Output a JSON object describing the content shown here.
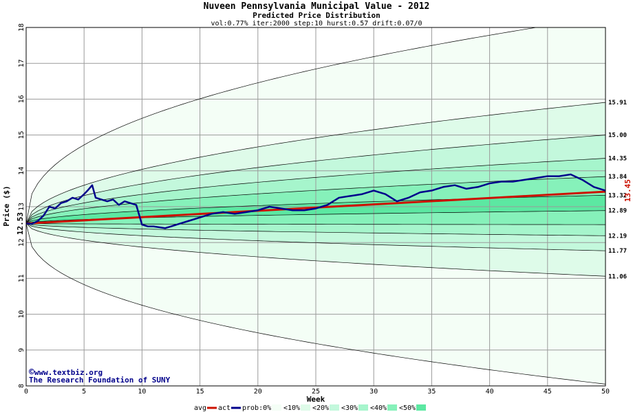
{
  "chart_data": {
    "type": "area",
    "title": "Nuveen Pennsylvania Municipal Value - 2012",
    "subtitle": "Predicted Price Distribution",
    "params": "vol:0.77% iter:2000 step:10 hurst:0.57 drift:0.07/0",
    "xlabel": "Week",
    "ylabel": "Price ($)",
    "xlim": [
      0,
      50
    ],
    "ylim": [
      8,
      18
    ],
    "x_ticks": [
      "0",
      "5",
      "10",
      "15",
      "20",
      "25",
      "30",
      "35",
      "40",
      "45",
      "50"
    ],
    "y_ticks": [
      "8",
      "9",
      "10",
      "11",
      "12",
      "13",
      "14",
      "15",
      "16",
      "17",
      "18"
    ],
    "grid": true,
    "start_price": 12.53,
    "start_price_label": "12.53",
    "end_actual": 13.45,
    "end_actual_label": "13.45",
    "right_labels": [
      "15.91",
      "15.00",
      "14.35",
      "13.84",
      "13.32",
      "12.89",
      "12.19",
      "11.77",
      "11.06"
    ],
    "bands": [
      {
        "name": "prob:0%",
        "upper": 18.3,
        "lower": 8.05,
        "color": "#f4fef6"
      },
      {
        "name": "<10%",
        "upper": 15.91,
        "lower": 11.06,
        "color": "#defbe9"
      },
      {
        "name": "<20%",
        "upper": 15.0,
        "lower": 11.77,
        "color": "#c3f8dc"
      },
      {
        "name": "<30%",
        "upper": 14.35,
        "lower": 12.19,
        "color": "#a6f5cc"
      },
      {
        "name": "<40%",
        "upper": 13.84,
        "lower": 12.5,
        "color": "#86f1ba"
      },
      {
        "name": "<50%",
        "upper": 13.32,
        "lower": 12.89,
        "color": "#5ce8a2"
      }
    ],
    "avg_line": {
      "name": "avg",
      "start": 12.53,
      "end": 13.42,
      "color": "#cc1100"
    },
    "act_series": {
      "name": "act",
      "color": "#00008b",
      "x": [
        0,
        0.5,
        1,
        1.5,
        2,
        2.5,
        3,
        3.5,
        4,
        4.5,
        5,
        5.3,
        5.7,
        6,
        6.5,
        7,
        7.5,
        8,
        8.5,
        9,
        9.5,
        10,
        10.5,
        11,
        12,
        13,
        14,
        15,
        16,
        17,
        18,
        19,
        20,
        21,
        22,
        23,
        24,
        25,
        26,
        27,
        28,
        29,
        30,
        31,
        32,
        33,
        34,
        35,
        36,
        37,
        38,
        39,
        40,
        41,
        42,
        43,
        44,
        45,
        46,
        47,
        48,
        48.5,
        49,
        49.5,
        50
      ],
      "y": [
        12.53,
        12.52,
        12.6,
        12.75,
        13.0,
        12.95,
        13.1,
        13.15,
        13.25,
        13.2,
        13.35,
        13.45,
        13.6,
        13.25,
        13.2,
        13.15,
        13.2,
        13.05,
        13.15,
        13.1,
        13.05,
        12.5,
        12.45,
        12.45,
        12.4,
        12.5,
        12.6,
        12.7,
        12.8,
        12.85,
        12.8,
        12.85,
        12.9,
        13.0,
        12.95,
        12.9,
        12.9,
        12.95,
        13.05,
        13.25,
        13.3,
        13.35,
        13.45,
        13.35,
        13.15,
        13.25,
        13.4,
        13.45,
        13.55,
        13.6,
        13.5,
        13.55,
        13.65,
        13.7,
        13.7,
        13.75,
        13.8,
        13.85,
        13.85,
        13.9,
        13.75,
        13.65,
        13.55,
        13.5,
        13.45
      ]
    },
    "legend_labels": [
      "avg",
      "act",
      "prob:0%",
      "<10%",
      "<20%",
      "<30%",
      "<40%",
      "<50%"
    ]
  },
  "credits": {
    "line1": "www.textbiz.org",
    "line2": "The Research Foundation of SUNY",
    "copyright": "©"
  }
}
